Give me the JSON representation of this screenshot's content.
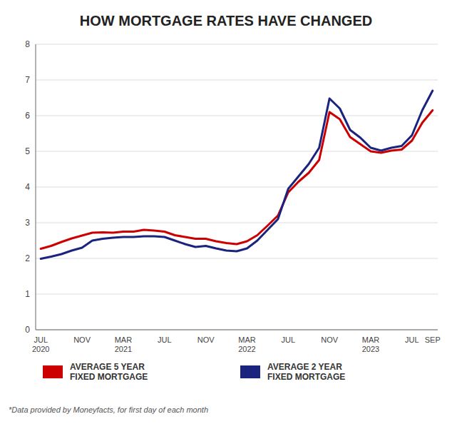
{
  "chart_data": {
    "type": "line",
    "title": "HOW MORTGAGE RATES HAVE CHANGED",
    "footnote": "*Data provided by Moneyfacts, for first day of each month",
    "categories": [
      "JUL\n2020",
      null,
      null,
      null,
      "NOV",
      null,
      null,
      null,
      "MAR\n2021",
      null,
      null,
      null,
      "JUL",
      null,
      null,
      null,
      "NOV",
      null,
      null,
      null,
      "MAR\n2022",
      null,
      null,
      null,
      "JUL",
      null,
      null,
      null,
      "NOV",
      null,
      null,
      null,
      "MAR\n2023",
      null,
      null,
      null,
      "JUL",
      null,
      "SEP"
    ],
    "series": [
      {
        "name": "AVERAGE 5 YEAR\nFIXED MORTGAGE",
        "color": "#cc0000",
        "values": [
          2.27,
          2.35,
          2.46,
          2.56,
          2.64,
          2.72,
          2.73,
          2.72,
          2.75,
          2.75,
          2.8,
          2.78,
          2.75,
          2.65,
          2.6,
          2.55,
          2.55,
          2.48,
          2.43,
          2.4,
          2.48,
          2.65,
          2.92,
          3.2,
          3.85,
          4.15,
          4.4,
          4.76,
          6.1,
          5.9,
          5.4,
          5.2,
          5.0,
          4.96,
          5.02,
          5.05,
          5.3,
          5.8,
          6.15
        ]
      },
      {
        "name": "AVERAGE 2 YEAR\nFIXED MORTGAGE",
        "color": "#1a237e",
        "values": [
          1.99,
          2.05,
          2.12,
          2.22,
          2.3,
          2.5,
          2.55,
          2.58,
          2.6,
          2.6,
          2.62,
          2.62,
          2.6,
          2.5,
          2.4,
          2.32,
          2.35,
          2.28,
          2.22,
          2.2,
          2.28,
          2.5,
          2.8,
          3.1,
          3.95,
          4.3,
          4.65,
          5.1,
          6.48,
          6.2,
          5.6,
          5.38,
          5.1,
          5.02,
          5.1,
          5.15,
          5.45,
          6.15,
          6.7
        ]
      }
    ],
    "ylim": [
      0,
      8
    ],
    "yticks": [
      0,
      1,
      2,
      3,
      4,
      5,
      6,
      7,
      8
    ],
    "grid": true,
    "legend": "bottom"
  }
}
